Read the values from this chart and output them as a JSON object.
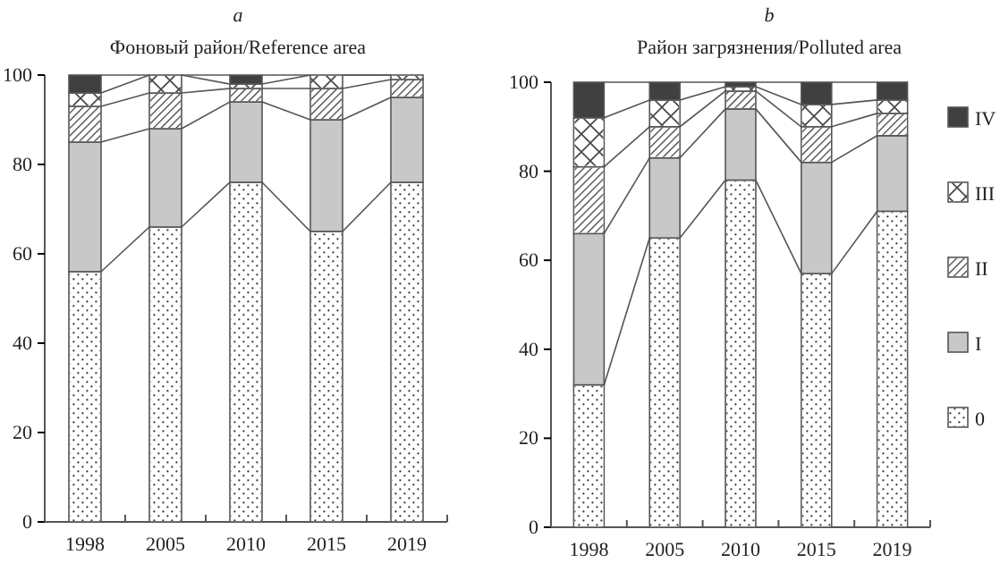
{
  "chart_data": [
    {
      "type": "bar",
      "title": "a",
      "subtitle": "Фоновый район/Reference area",
      "stacked": true,
      "categories": [
        "1998",
        "2005",
        "2010",
        "2015",
        "2019"
      ],
      "ylim": [
        0,
        100
      ],
      "yticks": [
        0,
        20,
        40,
        60,
        80,
        100
      ],
      "grid": false,
      "legend": false,
      "series": [
        {
          "color": "#ffffff",
          "values": [
            56,
            66,
            76,
            65,
            76
          ]
        },
        {
          "color": "#c8c8c8",
          "values": [
            29,
            22,
            18,
            25,
            19
          ]
        },
        {
          "color": "#ffffff",
          "values": [
            8,
            8,
            3,
            7,
            4
          ]
        },
        {
          "color": "#ffffff",
          "values": [
            3,
            4,
            1,
            3,
            1
          ]
        },
        {
          "color": "#404040",
          "values": [
            4,
            0,
            2,
            0,
            0
          ]
        }
      ]
    },
    {
      "type": "bar",
      "title": "b",
      "subtitle": "Район загрязнения/Polluted area",
      "stacked": true,
      "categories": [
        "1998",
        "2005",
        "2010",
        "2015",
        "2019"
      ],
      "ylim": [
        0,
        100
      ],
      "yticks": [
        0,
        20,
        40,
        60,
        80,
        100
      ],
      "grid": false,
      "legend": "right",
      "series": [
        {
          "name": "0",
          "color": "#ffffff",
          "values": [
            32,
            65,
            78,
            57,
            71
          ]
        },
        {
          "name": "I",
          "color": "#c8c8c8",
          "values": [
            34,
            18,
            16,
            25,
            17
          ]
        },
        {
          "name": "II",
          "color": "#ffffff",
          "values": [
            15,
            7,
            4,
            8,
            5
          ]
        },
        {
          "name": "III",
          "color": "#ffffff",
          "values": [
            11,
            6,
            1,
            5,
            3
          ]
        },
        {
          "name": "IV",
          "color": "#404040",
          "values": [
            8,
            4,
            1,
            5,
            4
          ]
        }
      ]
    }
  ]
}
